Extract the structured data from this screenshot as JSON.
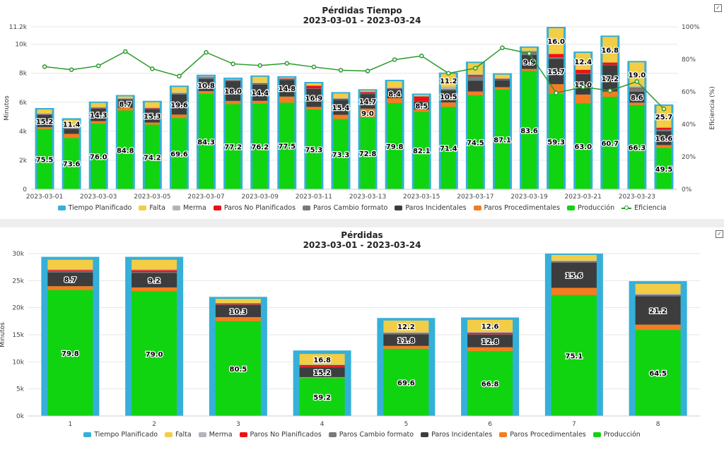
{
  "colors": {
    "Tiempo Planificado": "#35b0d8",
    "Falta": "#f2cd45",
    "Merma": "#b0b5bb",
    "Paros No Planificados": "#ee1111",
    "Paros Cambio formato": "#7a7a7a",
    "Paros Incidentales": "#3d3d3d",
    "Paros Procedimentales": "#f57c1f",
    "Producción": "#10d410",
    "Eficiencia": "#2a9a2a"
  },
  "legend": [
    "Tiempo Planificado",
    "Falta",
    "Merma",
    "Paros No Planificados",
    "Paros Cambio formato",
    "Paros Incidentales",
    "Paros Procedimentales",
    "Producción",
    "Eficiencia"
  ],
  "legend_bottom": [
    "Tiempo Planificado",
    "Falta",
    "Merma",
    "Paros No Planificados",
    "Paros Cambio formato",
    "Paros Incidentales",
    "Paros Procedimentales",
    "Producción"
  ],
  "chart_data": [
    {
      "type": "bar",
      "title": "Pérdidas Tiempo",
      "subtitle": "2023-03-01 - 2023-03-24",
      "xlabel": "",
      "ylabel": "Minutos",
      "y2label": "Eficiencia (%)",
      "ylim": [
        0,
        11200
      ],
      "y2lim": [
        0,
        100
      ],
      "yticks": [
        "0",
        "2k",
        "4k",
        "6k",
        "8k",
        "10k",
        "11.2k"
      ],
      "ytick_values": [
        0,
        2000,
        4000,
        6000,
        8000,
        10000,
        11200
      ],
      "y2ticks": [
        "0%",
        "20%",
        "40%",
        "60%",
        "80%",
        "100%"
      ],
      "grid": true,
      "legend_position": "bottom",
      "categories": [
        "2023-03-01",
        "2023-03-02",
        "2023-03-03",
        "2023-03-04",
        "2023-03-05",
        "2023-03-06",
        "2023-03-07",
        "2023-03-08",
        "2023-03-09",
        "2023-03-10",
        "2023-03-11",
        "2023-03-12",
        "2023-03-13",
        "2023-03-14",
        "2023-03-15",
        "2023-03-16",
        "2023-03-17",
        "2023-03-18",
        "2023-03-19",
        "2023-03-20",
        "2023-03-21",
        "2023-03-22",
        "2023-03-23",
        "2023-03-24"
      ],
      "xtick_labels": [
        "2023-03-01",
        "2023-03-03",
        "2023-03-05",
        "2023-03-07",
        "2023-03-09",
        "2023-03-11",
        "2023-03-13",
        "2023-03-15",
        "2023-03-17",
        "2023-03-19",
        "2023-03-21",
        "2023-03-23"
      ],
      "tiempo_planificado": [
        5600,
        4900,
        6050,
        6500,
        6100,
        7150,
        7900,
        7700,
        7850,
        7800,
        7400,
        6700,
        6900,
        7550,
        6600,
        8050,
        8800,
        8000,
        9850,
        11200,
        9500,
        10600,
        8850,
        5850
      ],
      "stack_order": [
        "Producción",
        "Paros Procedimentales",
        "Paros Incidentales",
        "Paros Cambio formato",
        "Paros No Planificados",
        "Merma",
        "Falta"
      ],
      "stacks_pct": [
        {
          "Producción": 75.5,
          "Paros Procedimentales": 2.5,
          "Paros Incidentales": 15.2,
          "Paros Cambio formato": 0.8,
          "Paros No Planificados": 0.3,
          "Merma": 0.5,
          "Falta": 5.2
        },
        {
          "Producción": 73.6,
          "Paros Procedimentales": 6.0,
          "Paros Incidentales": 7.0,
          "Paros Cambio formato": 0.6,
          "Paros No Planificados": 0.3,
          "Merma": 0.7,
          "Falta": 11.4
        },
        {
          "Producción": 76.0,
          "Paros Procedimentales": 3.0,
          "Paros Incidentales": 14.3,
          "Paros Cambio formato": 0.6,
          "Paros No Planificados": 0.6,
          "Merma": 0.5,
          "Falta": 5.0
        },
        {
          "Producción": 84.8,
          "Paros Procedimentales": 3.0,
          "Paros Incidentales": 8.7,
          "Paros Cambio formato": 0.5,
          "Paros No Planificados": 0.5,
          "Merma": 0.5,
          "Falta": 2.0
        },
        {
          "Producción": 74.2,
          "Paros Procedimentales": 2.5,
          "Paros Incidentales": 15.3,
          "Paros Cambio formato": 0.8,
          "Paros No Planificados": 0.5,
          "Merma": 0.5,
          "Falta": 6.2
        },
        {
          "Producción": 69.6,
          "Paros Procedimentales": 3.5,
          "Paros Incidentales": 19.6,
          "Paros Cambio formato": 0.8,
          "Paros No Planificados": 0.3,
          "Merma": 0.8,
          "Falta": 5.4
        },
        {
          "Producción": 84.3,
          "Paros Procedimentales": 2.5,
          "Paros Incidentales": 10.8,
          "Paros Cambio formato": 1.2,
          "Paros No Planificados": 0.2,
          "Merma": 1.0,
          "Falta": 0.0
        },
        {
          "Producción": 77.2,
          "Paros Procedimentales": 3.0,
          "Paros Incidentales": 18.0,
          "Paros Cambio formato": 0.6,
          "Paros No Planificados": 0.2,
          "Merma": 1.0,
          "Falta": 0.0
        },
        {
          "Producción": 76.2,
          "Paros Procedimentales": 2.5,
          "Paros Incidentales": 14.4,
          "Paros Cambio formato": 0.6,
          "Paros No Planificados": 0.5,
          "Merma": 0.5,
          "Falta": 5.3
        },
        {
          "Producción": 77.5,
          "Paros Procedimentales": 5.5,
          "Paros Incidentales": 14.8,
          "Paros Cambio formato": 0.5,
          "Paros No Planificados": 0.7,
          "Merma": 0.5,
          "Falta": 0.5
        },
        {
          "Producción": 75.3,
          "Paros Procedimentales": 2.5,
          "Paros Incidentales": 16.9,
          "Paros Cambio formato": 0.5,
          "Paros No Planificados": 2.5,
          "Merma": 0.3,
          "Falta": 2.0
        },
        {
          "Producción": 73.3,
          "Paros Procedimentales": 4.5,
          "Paros Incidentales": 15.4,
          "Paros Cambio formato": 0.5,
          "Paros No Planificados": 0.8,
          "Merma": 0.5,
          "Falta": 5.0
        },
        {
          "Producción": 72.8,
          "Paros Procedimentales": 9.0,
          "Paros Incidentales": 14.7,
          "Paros Cambio formato": 0.5,
          "Paros No Planificados": 1.5,
          "Merma": 0.5,
          "Falta": 1.0
        },
        {
          "Producción": 79.8,
          "Paros Procedimentales": 4.5,
          "Paros Incidentales": 8.4,
          "Paros Cambio formato": 0.5,
          "Paros No Planificados": 0.3,
          "Merma": 0.5,
          "Falta": 6.0
        },
        {
          "Producción": 82.1,
          "Paros Procedimentales": 2.5,
          "Paros Incidentales": 8.5,
          "Paros Cambio formato": 0.3,
          "Paros No Planificados": 5.0,
          "Merma": 0.3,
          "Falta": 1.3
        },
        {
          "Producción": 71.4,
          "Paros Procedimentales": 4.0,
          "Paros Incidentales": 10.5,
          "Paros Cambio formato": 0.5,
          "Paros No Planificados": 0.3,
          "Merma": 2.1,
          "Falta": 11.2
        },
        {
          "Producción": 74.5,
          "Paros Procedimentales": 3.0,
          "Paros Incidentales": 8.5,
          "Paros Cambio formato": 3.5,
          "Paros No Planificados": 1.0,
          "Merma": 0.5,
          "Falta": 9.0
        },
        {
          "Producción": 87.1,
          "Paros Procedimentales": 2.0,
          "Paros Incidentales": 6.0,
          "Paros Cambio formato": 0.5,
          "Paros No Planificados": 0.8,
          "Merma": 0.3,
          "Falta": 3.3
        },
        {
          "Producción": 83.6,
          "Paros Procedimentales": 1.5,
          "Paros Incidentales": 9.9,
          "Paros Cambio formato": 2.0,
          "Paros No Planificados": 0.3,
          "Merma": 0.7,
          "Falta": 2.0
        },
        {
          "Producción": 59.3,
          "Paros Procedimentales": 6.0,
          "Paros Incidentales": 15.7,
          "Paros Cambio formato": 1.0,
          "Paros No Planificados": 2.0,
          "Merma": 0.0,
          "Falta": 16.0
        },
        {
          "Producción": 63.0,
          "Paros Procedimentales": 6.5,
          "Paros Incidentales": 15.0,
          "Paros Cambio formato": 0.5,
          "Paros No Planificados": 2.6,
          "Merma": 0.0,
          "Falta": 12.4
        },
        {
          "Producción": 60.7,
          "Paros Procedimentales": 3.5,
          "Paros Incidentales": 17.2,
          "Paros Cambio formato": 0.3,
          "Paros No Planificados": 1.5,
          "Merma": 0.0,
          "Falta": 16.8
        },
        {
          "Producción": 66.3,
          "Paros Procedimentales": 2.0,
          "Paros Incidentales": 8.6,
          "Paros Cambio formato": 3.0,
          "Paros No Planificados": 0.3,
          "Merma": 0.8,
          "Falta": 19.0
        },
        {
          "Producción": 49.5,
          "Paros Procedimentales": 3.5,
          "Paros Incidentales": 16.6,
          "Paros Cambio formato": 2.0,
          "Paros No Planificados": 2.0,
          "Merma": 0.7,
          "Falta": 25.7
        }
      ],
      "labels": [
        {
          "Producción": "75.5",
          "Paros Incidentales": "15.2"
        },
        {
          "Producción": "73.6",
          "Falta": "11.4"
        },
        {
          "Producción": "76.0",
          "Paros Incidentales": "14.3"
        },
        {
          "Producción": "84.8",
          "Paros Incidentales": "8.7"
        },
        {
          "Producción": "74.2",
          "Paros Incidentales": "15.3"
        },
        {
          "Producción": "69.6",
          "Paros Incidentales": "19.6"
        },
        {
          "Producción": "84.3",
          "Paros Incidentales": "10.8"
        },
        {
          "Producción": "77.2",
          "Paros Incidentales": "18.0"
        },
        {
          "Producción": "76.2",
          "Paros Incidentales": "14.4"
        },
        {
          "Producción": "77.5",
          "Paros Incidentales": "14.8"
        },
        {
          "Producción": "75.3",
          "Paros Incidentales": "16.9"
        },
        {
          "Producción": "73.3",
          "Paros Incidentales": "15.4"
        },
        {
          "Producción": "72.8",
          "Paros Incidentales": "14.7",
          "Paros Procedimentales": "9.0"
        },
        {
          "Producción": "79.8",
          "Paros Incidentales": "8.4"
        },
        {
          "Producción": "82.1",
          "Paros Incidentales": "8.5"
        },
        {
          "Producción": "71.4",
          "Paros Incidentales": "10.5",
          "Falta": "11.2"
        },
        {
          "Producción": "74.5"
        },
        {
          "Producción": "87.1"
        },
        {
          "Producción": "83.6",
          "Paros Incidentales": "9.9"
        },
        {
          "Producción": "59.3",
          "Paros Incidentales": "15.7",
          "Falta": "16.0"
        },
        {
          "Producción": "63.0",
          "Paros Incidentales": "15.0",
          "Falta": "12.4"
        },
        {
          "Producción": "60.7",
          "Paros Incidentales": "17.2",
          "Falta": "16.8"
        },
        {
          "Producción": "66.3",
          "Paros Incidentales": "8.6",
          "Falta": "19.0"
        },
        {
          "Producción": "49.5",
          "Paros Incidentales": "16.6",
          "Falta": "25.7"
        }
      ],
      "eficiencia": [
        75.5,
        73.6,
        76.0,
        84.8,
        74.2,
        69.6,
        84.3,
        77.2,
        76.2,
        77.5,
        75.3,
        73.3,
        72.8,
        79.8,
        82.1,
        71.4,
        74.5,
        87.1,
        83.6,
        59.3,
        63.0,
        60.7,
        66.3,
        49.5
      ]
    },
    {
      "type": "bar",
      "title": "Pérdidas",
      "subtitle": "2023-03-01 - 2023-03-24",
      "xlabel": "",
      "ylabel": "Minutos",
      "ylim": [
        0,
        30000
      ],
      "yticks": [
        "0k",
        "5k",
        "10k",
        "15k",
        "20k",
        "25k",
        "30k"
      ],
      "ytick_values": [
        0,
        5000,
        10000,
        15000,
        20000,
        25000,
        30000
      ],
      "grid": true,
      "legend_position": "bottom",
      "categories": [
        "1",
        "2",
        "3",
        "4",
        "5",
        "6",
        "7",
        "8"
      ],
      "tiempo_planificado": [
        29400,
        29400,
        22000,
        12100,
        18100,
        18200,
        30000,
        24900
      ],
      "stack_order": [
        "Producción",
        "Paros Procedimentales",
        "Paros Incidentales",
        "Paros Cambio formato",
        "Paros No Planificados",
        "Merma",
        "Falta"
      ],
      "stacks_pct": [
        {
          "Producción": 79.8,
          "Paros Procedimentales": 2.5,
          "Paros Incidentales": 8.7,
          "Paros Cambio formato": 0.6,
          "Paros No Planificados": 0.8,
          "Merma": 0.6,
          "Falta": 6.0
        },
        {
          "Producción": 79.0,
          "Paros Procedimentales": 2.5,
          "Paros Incidentales": 9.2,
          "Paros Cambio formato": 0.5,
          "Paros No Planificados": 1.2,
          "Merma": 0.6,
          "Falta": 6.0
        },
        {
          "Producción": 80.5,
          "Paros Procedimentales": 3.5,
          "Paros Incidentales": 10.3,
          "Paros Cambio formato": 0.5,
          "Paros No Planificados": 0.8,
          "Merma": 0.4,
          "Falta": 3.5
        },
        {
          "Producción": 59.2,
          "Paros Procedimentales": 1.5,
          "Paros Incidentales": 15.2,
          "Paros Cambio formato": 0.5,
          "Paros No Planificados": 3.0,
          "Merma": 0.6,
          "Falta": 16.8
        },
        {
          "Producción": 69.6,
          "Paros Procedimentales": 3.0,
          "Paros Incidentales": 11.8,
          "Paros Cambio formato": 0.8,
          "Paros No Planificados": 0.6,
          "Merma": 0.8,
          "Falta": 12.2
        },
        {
          "Producción": 66.8,
          "Paros Procedimentales": 4.0,
          "Paros Incidentales": 12.8,
          "Paros Cambio formato": 0.5,
          "Paros No Planificados": 1.5,
          "Merma": 0.8,
          "Falta": 12.6
        },
        {
          "Producción": 75.1,
          "Paros Procedimentales": 4.5,
          "Paros Incidentales": 15.6,
          "Paros Cambio formato": 0.5,
          "Paros No Planificados": 0.3,
          "Merma": 0.5,
          "Falta": 3.5
        },
        {
          "Producción": 64.5,
          "Paros Procedimentales": 4.0,
          "Paros Incidentales": 21.2,
          "Paros Cambio formato": 0.5,
          "Paros No Planificados": 0.5,
          "Merma": 0.8,
          "Falta": 7.5
        }
      ],
      "labels": [
        {
          "Producción": "79.8",
          "Paros Incidentales": "8.7"
        },
        {
          "Producción": "79.0",
          "Paros Incidentales": "9.2"
        },
        {
          "Producción": "80.5",
          "Paros Incidentales": "10.3"
        },
        {
          "Producción": "59.2",
          "Paros Incidentales": "15.2",
          "Falta": "16.8"
        },
        {
          "Producción": "69.6",
          "Paros Incidentales": "11.8",
          "Falta": "12.2"
        },
        {
          "Producción": "66.8",
          "Paros Incidentales": "12.8",
          "Falta": "12.6"
        },
        {
          "Producción": "75.1",
          "Paros Incidentales": "15.6"
        },
        {
          "Producción": "64.5",
          "Paros Incidentales": "21.2"
        }
      ]
    }
  ]
}
